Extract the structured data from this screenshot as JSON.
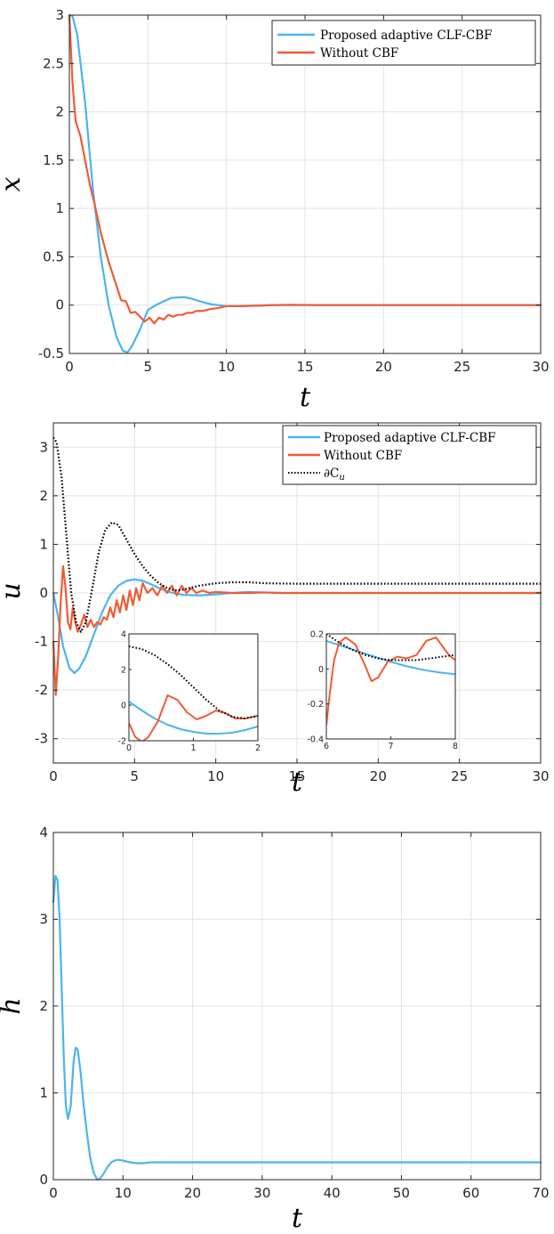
{
  "colors": {
    "blue": "#4DB3F0",
    "orange": "#EE5C35",
    "black": "#000000"
  },
  "chart_data": [
    {
      "id": "x-plot",
      "type": "line",
      "title": "",
      "xlabel": "t",
      "ylabel": "x",
      "xlim": [
        0,
        30
      ],
      "ylim": [
        -0.5,
        3
      ],
      "xticks": [
        0,
        5,
        10,
        15,
        20,
        25,
        30
      ],
      "yticks": [
        -0.5,
        0,
        0.5,
        1,
        1.5,
        2,
        2.5,
        3
      ],
      "xtick_labels": [
        "0",
        "5",
        "10",
        "15",
        "20",
        "25",
        "30"
      ],
      "ytick_labels": [
        "-0.5",
        "0",
        "0.5",
        "1",
        "1.5",
        "2",
        "2.5",
        "3"
      ],
      "grid": true,
      "legend_position": "top-right",
      "legend": [
        "Proposed adaptive CLF-CBF",
        "Without CBF"
      ],
      "series": [
        {
          "name": "Proposed adaptive CLF-CBF",
          "color": "#4DB3F0",
          "style": "solid",
          "x": [
            0,
            0.2,
            0.5,
            1.0,
            1.5,
            2.0,
            2.5,
            3.0,
            3.4,
            3.7,
            4.0,
            4.5,
            5.0,
            5.5,
            6.0,
            6.5,
            7.0,
            7.3,
            7.7,
            8.0,
            8.5,
            9.0,
            10.0,
            11.0,
            12.0,
            13.0,
            14.0,
            16.0,
            30.0
          ],
          "y": [
            3.0,
            2.99,
            2.8,
            2.1,
            1.2,
            0.5,
            0.0,
            -0.33,
            -0.47,
            -0.49,
            -0.42,
            -0.25,
            -0.05,
            0.0,
            0.04,
            0.075,
            0.08,
            0.083,
            0.07,
            0.055,
            0.03,
            0.01,
            -0.01,
            -0.012,
            -0.005,
            0.0,
            0.005,
            0.0,
            0.0
          ]
        },
        {
          "name": "Without CBF",
          "color": "#EE5C35",
          "style": "solid",
          "x": [
            0,
            0.2,
            0.4,
            0.7,
            1.0,
            1.3,
            1.6,
            2.0,
            2.5,
            3.0,
            3.3,
            3.6,
            3.9,
            4.2,
            4.5,
            4.8,
            5.1,
            5.4,
            5.7,
            6.0,
            6.3,
            6.6,
            6.9,
            7.2,
            7.5,
            7.8,
            8.1,
            8.5,
            9.0,
            9.5,
            10.0,
            11.0,
            12.0,
            13.0,
            14.0,
            16.0,
            30.0
          ],
          "y": [
            3.0,
            2.3,
            1.9,
            1.75,
            1.5,
            1.25,
            1.05,
            0.75,
            0.45,
            0.2,
            0.05,
            0.04,
            -0.08,
            -0.07,
            -0.12,
            -0.17,
            -0.13,
            -0.19,
            -0.13,
            -0.15,
            -0.1,
            -0.12,
            -0.1,
            -0.1,
            -0.08,
            -0.08,
            -0.06,
            -0.06,
            -0.04,
            -0.03,
            -0.01,
            -0.008,
            -0.005,
            0.0,
            0.0,
            0.0,
            0.0
          ]
        }
      ]
    },
    {
      "id": "u-plot",
      "type": "line",
      "title": "",
      "xlabel": "t",
      "ylabel": "u",
      "xlim": [
        0,
        30
      ],
      "ylim": [
        -3.5,
        3.5
      ],
      "xticks": [
        0,
        5,
        10,
        15,
        20,
        25,
        30
      ],
      "yticks": [
        -3,
        -2,
        -1,
        0,
        1,
        2,
        3
      ],
      "xtick_labels": [
        "0",
        "5",
        "10",
        "15",
        "20",
        "25",
        "30"
      ],
      "ytick_labels": [
        "-3",
        "-2",
        "-1",
        "0",
        "1",
        "2",
        "3"
      ],
      "grid": true,
      "legend_position": "top-right",
      "legend": [
        "Proposed adaptive CLF-CBF",
        "Without CBF",
        "∂C"
      ],
      "legend_subscript": "u",
      "series": [
        {
          "name": "Proposed adaptive CLF-CBF",
          "color": "#4DB3F0",
          "style": "solid",
          "x": [
            0,
            0.3,
            0.6,
            1.0,
            1.3,
            1.6,
            2.0,
            2.5,
            3.0,
            3.5,
            4.0,
            4.5,
            5.0,
            5.5,
            6.0,
            6.5,
            7.0,
            7.5,
            8.0,
            9.0,
            10.0,
            11.0,
            12.0,
            13.0,
            14.0,
            15.0,
            30.0
          ],
          "y": [
            0.0,
            -0.5,
            -1.1,
            -1.55,
            -1.65,
            -1.55,
            -1.3,
            -0.85,
            -0.4,
            -0.05,
            0.15,
            0.25,
            0.28,
            0.25,
            0.18,
            0.1,
            0.03,
            -0.01,
            -0.04,
            -0.05,
            -0.03,
            0.0,
            0.02,
            0.01,
            0.0,
            0.0,
            0.0
          ]
        },
        {
          "name": "Without CBF",
          "color": "#EE5C35",
          "style": "solid",
          "x": [
            0,
            0.15,
            0.3,
            0.45,
            0.6,
            0.75,
            0.9,
            1.05,
            1.2,
            1.35,
            1.5,
            1.7,
            1.9,
            2.1,
            2.3,
            2.5,
            2.7,
            2.9,
            3.1,
            3.3,
            3.5,
            3.7,
            3.9,
            4.1,
            4.3,
            4.5,
            4.7,
            4.9,
            5.1,
            5.3,
            5.5,
            5.8,
            6.1,
            6.4,
            6.7,
            7.0,
            7.3,
            7.6,
            7.9,
            8.2,
            8.5,
            8.8,
            9.2,
            9.6,
            10.0,
            11.0,
            12.0,
            13.0,
            14.0,
            16.0,
            30.0
          ],
          "y": [
            -1.0,
            -2.1,
            -1.3,
            -0.2,
            0.55,
            0.1,
            -0.6,
            -0.75,
            -0.3,
            -0.6,
            -0.8,
            -0.65,
            -0.45,
            -0.7,
            -0.55,
            -0.7,
            -0.6,
            -0.65,
            -0.5,
            -0.55,
            -0.3,
            -0.5,
            -0.15,
            -0.4,
            -0.05,
            -0.35,
            0.05,
            -0.25,
            0.1,
            -0.15,
            0.2,
            0.0,
            0.1,
            -0.05,
            0.15,
            0.0,
            0.15,
            -0.05,
            0.15,
            0.0,
            0.1,
            0.0,
            0.05,
            0.0,
            0.02,
            0.0,
            0.0,
            0.01,
            0.0,
            0.0,
            0.0
          ]
        },
        {
          "name": "∂C_u",
          "color": "#000000",
          "style": "dotted",
          "x": [
            0,
            0.2,
            0.5,
            0.8,
            1.1,
            1.4,
            1.7,
            2.0,
            2.4,
            2.8,
            3.2,
            3.6,
            4.0,
            4.5,
            5.0,
            5.5,
            6.0,
            6.5,
            7.0,
            7.5,
            8.0,
            9.0,
            10.0,
            11.0,
            12.0,
            13.0,
            15.0,
            20.0,
            30.0
          ],
          "y": [
            3.2,
            3.1,
            2.4,
            1.2,
            0.0,
            -0.6,
            -0.8,
            -0.6,
            0.1,
            0.85,
            1.3,
            1.45,
            1.4,
            1.1,
            0.8,
            0.55,
            0.35,
            0.2,
            0.1,
            0.05,
            0.07,
            0.15,
            0.2,
            0.22,
            0.22,
            0.2,
            0.19,
            0.19,
            0.19
          ]
        }
      ],
      "insets": [
        {
          "xlim": [
            0,
            2
          ],
          "ylim": [
            -2,
            4
          ],
          "xticks": [
            0,
            1,
            2
          ],
          "yticks": [
            -2,
            0,
            2,
            4
          ],
          "xtick_labels": [
            "0",
            "1",
            "2"
          ],
          "ytick_labels": [
            "-2",
            "0",
            "2",
            "4"
          ],
          "series": [
            {
              "name": "Proposed adaptive CLF-CBF",
              "color": "#4DB3F0",
              "style": "solid",
              "x": [
                0,
                0.2,
                0.4,
                0.6,
                0.8,
                1.0,
                1.2,
                1.4,
                1.6,
                1.8,
                2.0
              ],
              "y": [
                0.2,
                -0.3,
                -0.75,
                -1.1,
                -1.35,
                -1.5,
                -1.6,
                -1.6,
                -1.55,
                -1.4,
                -1.2
              ]
            },
            {
              "name": "Without CBF",
              "color": "#EE5C35",
              "style": "solid",
              "x": [
                0,
                0.1,
                0.2,
                0.3,
                0.45,
                0.6,
                0.75,
                0.9,
                1.05,
                1.2,
                1.35,
                1.5,
                1.65,
                1.8,
                2.0
              ],
              "y": [
                -1.0,
                -1.8,
                -2.05,
                -1.8,
                -0.9,
                0.55,
                0.3,
                -0.4,
                -0.8,
                -0.6,
                -0.3,
                -0.45,
                -0.75,
                -0.75,
                -0.6
              ]
            },
            {
              "name": "∂C_u",
              "color": "#000000",
              "style": "dotted",
              "x": [
                0,
                0.2,
                0.4,
                0.6,
                0.8,
                1.0,
                1.2,
                1.4,
                1.6,
                1.8,
                2.0
              ],
              "y": [
                3.3,
                3.15,
                2.8,
                2.3,
                1.7,
                1.0,
                0.3,
                -0.3,
                -0.65,
                -0.75,
                -0.6
              ]
            }
          ]
        },
        {
          "xlim": [
            6,
            8
          ],
          "ylim": [
            -0.4,
            0.2
          ],
          "xticks": [
            6,
            7,
            8
          ],
          "yticks": [
            -0.4,
            -0.2,
            0,
            0.2
          ],
          "xtick_labels": [
            "6",
            "7",
            "8"
          ],
          "ytick_labels": [
            "-0.4",
            "-0.2",
            "0",
            "0.2"
          ],
          "series": [
            {
              "name": "Proposed adaptive CLF-CBF",
              "color": "#4DB3F0",
              "style": "solid",
              "x": [
                6.0,
                6.25,
                6.5,
                6.75,
                7.0,
                7.25,
                7.5,
                7.75,
                8.0
              ],
              "y": [
                0.16,
                0.13,
                0.1,
                0.07,
                0.04,
                0.015,
                -0.005,
                -0.02,
                -0.03
              ]
            },
            {
              "name": "Without CBF",
              "color": "#EE5C35",
              "style": "solid",
              "x": [
                6.0,
                6.05,
                6.12,
                6.2,
                6.3,
                6.45,
                6.6,
                6.7,
                6.8,
                6.95,
                7.1,
                7.25,
                7.4,
                7.55,
                7.7,
                7.8,
                7.9,
                8.0
              ],
              "y": [
                -0.32,
                -0.15,
                0.05,
                0.15,
                0.18,
                0.14,
                0.02,
                -0.07,
                -0.05,
                0.04,
                0.07,
                0.06,
                0.08,
                0.16,
                0.18,
                0.13,
                0.08,
                0.05
              ]
            },
            {
              "name": "∂C_u",
              "color": "#000000",
              "style": "dotted",
              "x": [
                6.0,
                6.2,
                6.4,
                6.6,
                6.8,
                7.0,
                7.2,
                7.4,
                7.6,
                7.8,
                8.0
              ],
              "y": [
                0.2,
                0.15,
                0.11,
                0.08,
                0.06,
                0.05,
                0.05,
                0.05,
                0.06,
                0.07,
                0.08
              ]
            }
          ]
        }
      ]
    },
    {
      "id": "h-plot",
      "type": "line",
      "title": "",
      "xlabel": "t",
      "ylabel": "h",
      "xlim": [
        0,
        70
      ],
      "ylim": [
        0,
        4
      ],
      "xticks": [
        0,
        10,
        20,
        30,
        40,
        50,
        60,
        70
      ],
      "yticks": [
        0,
        1,
        2,
        3,
        4
      ],
      "xtick_labels": [
        "0",
        "10",
        "20",
        "30",
        "40",
        "50",
        "60",
        "70"
      ],
      "ytick_labels": [
        "0",
        "1",
        "2",
        "3",
        "4"
      ],
      "grid": true,
      "series": [
        {
          "name": "h",
          "color": "#4DB3F0",
          "style": "solid",
          "x": [
            0,
            0.3,
            0.6,
            0.9,
            1.2,
            1.5,
            1.8,
            2.1,
            2.5,
            2.9,
            3.2,
            3.5,
            3.9,
            4.3,
            4.8,
            5.3,
            5.8,
            6.3,
            6.8,
            7.3,
            7.8,
            8.3,
            8.8,
            9.3,
            10.0,
            11.0,
            12.0,
            13.0,
            14.0,
            16.0,
            20.0,
            70.0
          ],
          "y": [
            3.2,
            3.5,
            3.45,
            3.0,
            2.2,
            1.4,
            0.85,
            0.7,
            0.85,
            1.35,
            1.52,
            1.5,
            1.25,
            0.9,
            0.55,
            0.25,
            0.08,
            0.0,
            0.02,
            0.08,
            0.15,
            0.2,
            0.22,
            0.23,
            0.22,
            0.2,
            0.19,
            0.19,
            0.2,
            0.2,
            0.2,
            0.2
          ]
        }
      ]
    }
  ]
}
